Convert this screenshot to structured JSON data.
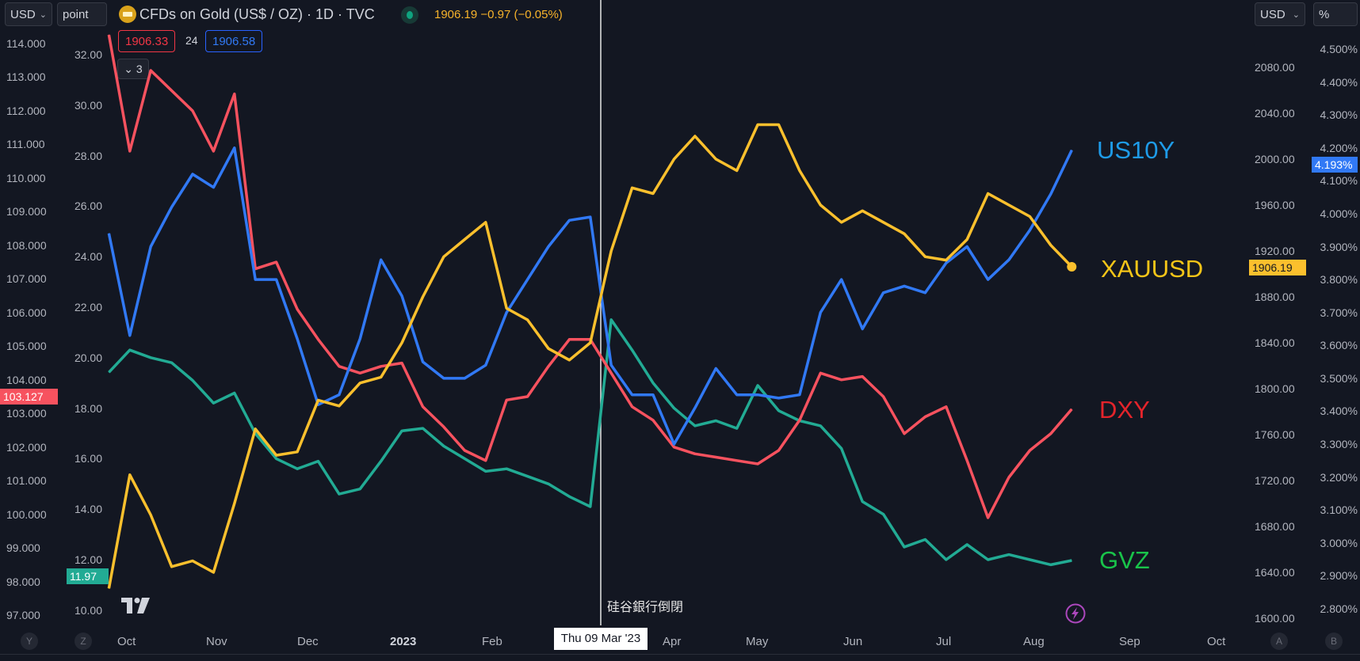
{
  "header": {
    "currency_left": "USD",
    "unit_left": "point",
    "title": "CFDs on Gold (US$ / OZ) · 1D · TVC",
    "quote": "1906.19  −0.97 (−0.05%)",
    "bid": "1906.33",
    "spread": "24",
    "ask": "1906.58",
    "collapse_count": "3",
    "currency_right": "USD",
    "unit_right": "%"
  },
  "colors": {
    "background": "#131722",
    "dxy": "#f7525f",
    "us10y": "#3179f5",
    "xauusd": "#fbc02d",
    "gvz": "#22ab94",
    "label_us10y": "#1e9be8",
    "label_dxy": "#e3242b",
    "label_gvz": "#19c34a",
    "label_xauusd": "#f5c518"
  },
  "annotation": "硅谷銀行倒閉",
  "crosshair_date": "Thu 09 Mar '23",
  "bottom_buttons": {
    "y": "Y",
    "z": "Z",
    "a": "A",
    "b": "B"
  },
  "chart_data": {
    "type": "line",
    "x": [
      "2022-09-25",
      "2022-10-02",
      "2022-10-09",
      "2022-10-16",
      "2022-10-23",
      "2022-10-30",
      "2022-11-06",
      "2022-11-13",
      "2022-11-20",
      "2022-11-27",
      "2022-12-04",
      "2022-12-11",
      "2022-12-18",
      "2022-12-25",
      "2023-01-01",
      "2023-01-08",
      "2023-01-15",
      "2023-01-22",
      "2023-01-29",
      "2023-02-05",
      "2023-02-12",
      "2023-02-19",
      "2023-02-26",
      "2023-03-05",
      "2023-03-12",
      "2023-03-19",
      "2023-03-26",
      "2023-04-02",
      "2023-04-09",
      "2023-04-16",
      "2023-04-23",
      "2023-04-30",
      "2023-05-07",
      "2023-05-14",
      "2023-05-21",
      "2023-05-28",
      "2023-06-04",
      "2023-06-11",
      "2023-06-18",
      "2023-06-25",
      "2023-07-02",
      "2023-07-09",
      "2023-07-16",
      "2023-07-23",
      "2023-07-30",
      "2023-08-06",
      "2023-08-13"
    ],
    "x_ticks": [
      "Oct",
      "Nov",
      "Dec",
      "2023",
      "Feb",
      "Mar",
      "Apr",
      "May",
      "Jun",
      "Jul",
      "Aug",
      "Sep",
      "Oct"
    ],
    "series": [
      {
        "name": "US10Y",
        "axis": "right-percent",
        "last": "4.193%",
        "values": [
          3.94,
          3.63,
          3.9,
          4.02,
          4.12,
          4.08,
          4.2,
          3.8,
          3.8,
          3.62,
          3.42,
          3.45,
          3.62,
          3.86,
          3.75,
          3.55,
          3.5,
          3.5,
          3.54,
          3.7,
          3.8,
          3.9,
          3.98,
          3.99,
          3.54,
          3.45,
          3.45,
          3.3,
          3.41,
          3.53,
          3.45,
          3.45,
          3.44,
          3.45,
          3.7,
          3.8,
          3.65,
          3.76,
          3.78,
          3.76,
          3.85,
          3.9,
          3.8,
          3.86,
          3.95,
          4.06,
          4.193
        ]
      },
      {
        "name": "XAUUSD",
        "axis": "right-usd",
        "last": "1906.19",
        "values": [
          1626,
          1725,
          1690,
          1645,
          1650,
          1640,
          1700,
          1765,
          1742,
          1745,
          1790,
          1785,
          1805,
          1810,
          1840,
          1880,
          1915,
          1930,
          1945,
          1870,
          1860,
          1835,
          1825,
          1840,
          1920,
          1975,
          1970,
          2000,
          2020,
          2000,
          1990,
          2030,
          2030,
          1990,
          1960,
          1945,
          1955,
          1945,
          1935,
          1915,
          1912,
          1930,
          1970,
          1960,
          1950,
          1925,
          1906.19
        ]
      },
      {
        "name": "DXY",
        "axis": "left-usd",
        "last": "103.127",
        "values": [
          114.26,
          110.8,
          113.2,
          112.6,
          112.0,
          110.8,
          112.5,
          107.3,
          107.5,
          106.1,
          105.2,
          104.4,
          104.2,
          104.4,
          104.5,
          103.2,
          102.6,
          101.9,
          101.6,
          103.4,
          103.5,
          104.4,
          105.2,
          105.2,
          104.2,
          103.2,
          102.8,
          102.0,
          101.8,
          101.7,
          101.6,
          101.5,
          101.9,
          102.8,
          104.2,
          104.0,
          104.1,
          103.5,
          102.4,
          102.9,
          103.2,
          101.6,
          99.9,
          101.1,
          101.9,
          102.4,
          103.127
        ]
      },
      {
        "name": "GVZ",
        "axis": "left-point",
        "last": "11.97",
        "values": [
          19.42,
          20.3,
          20.0,
          19.8,
          19.1,
          18.2,
          18.6,
          17.0,
          16.0,
          15.6,
          15.9,
          14.6,
          14.8,
          15.9,
          17.1,
          17.2,
          16.5,
          16.0,
          15.5,
          15.6,
          15.3,
          15.0,
          14.5,
          14.1,
          21.5,
          20.3,
          19.0,
          18.0,
          17.3,
          17.5,
          17.2,
          18.9,
          17.9,
          17.5,
          17.3,
          16.4,
          14.3,
          13.8,
          12.5,
          12.8,
          12.0,
          12.6,
          12.0,
          12.2,
          12.0,
          11.8,
          11.97
        ]
      }
    ],
    "axes": {
      "left_usd": {
        "ylim": [
          97,
          114
        ],
        "ticks": [
          "114.000",
          "113.000",
          "112.000",
          "111.000",
          "110.000",
          "109.000",
          "108.000",
          "107.000",
          "106.000",
          "105.000",
          "104.000",
          "103.000",
          "102.000",
          "101.000",
          "100.000",
          "99.000",
          "98.000",
          "97.000"
        ]
      },
      "left_point": {
        "ylim": [
          10,
          32
        ],
        "ticks": [
          "32.00",
          "30.00",
          "28.00",
          "26.00",
          "24.00",
          "22.00",
          "20.00",
          "18.00",
          "16.00",
          "14.00",
          "12.00",
          "10.00"
        ]
      },
      "right_usd": {
        "ylim": [
          1600,
          2080
        ],
        "ticks": [
          "2080.00",
          "2040.00",
          "2000.00",
          "1960.00",
          "1920.00",
          "1880.00",
          "1840.00",
          "1800.00",
          "1760.00",
          "1720.00",
          "1680.00",
          "1640.00",
          "1600.00"
        ]
      },
      "right_percent": {
        "ylim": [
          2.8,
          4.5
        ],
        "ticks": [
          "4.500%",
          "4.400%",
          "4.300%",
          "4.200%",
          "4.100%",
          "4.000%",
          "3.900%",
          "3.800%",
          "3.700%",
          "3.600%",
          "3.500%",
          "3.400%",
          "3.300%",
          "3.200%",
          "3.100%",
          "3.000%",
          "2.900%",
          "2.800%"
        ]
      }
    },
    "grid": false,
    "legend": "right, inline labels"
  }
}
